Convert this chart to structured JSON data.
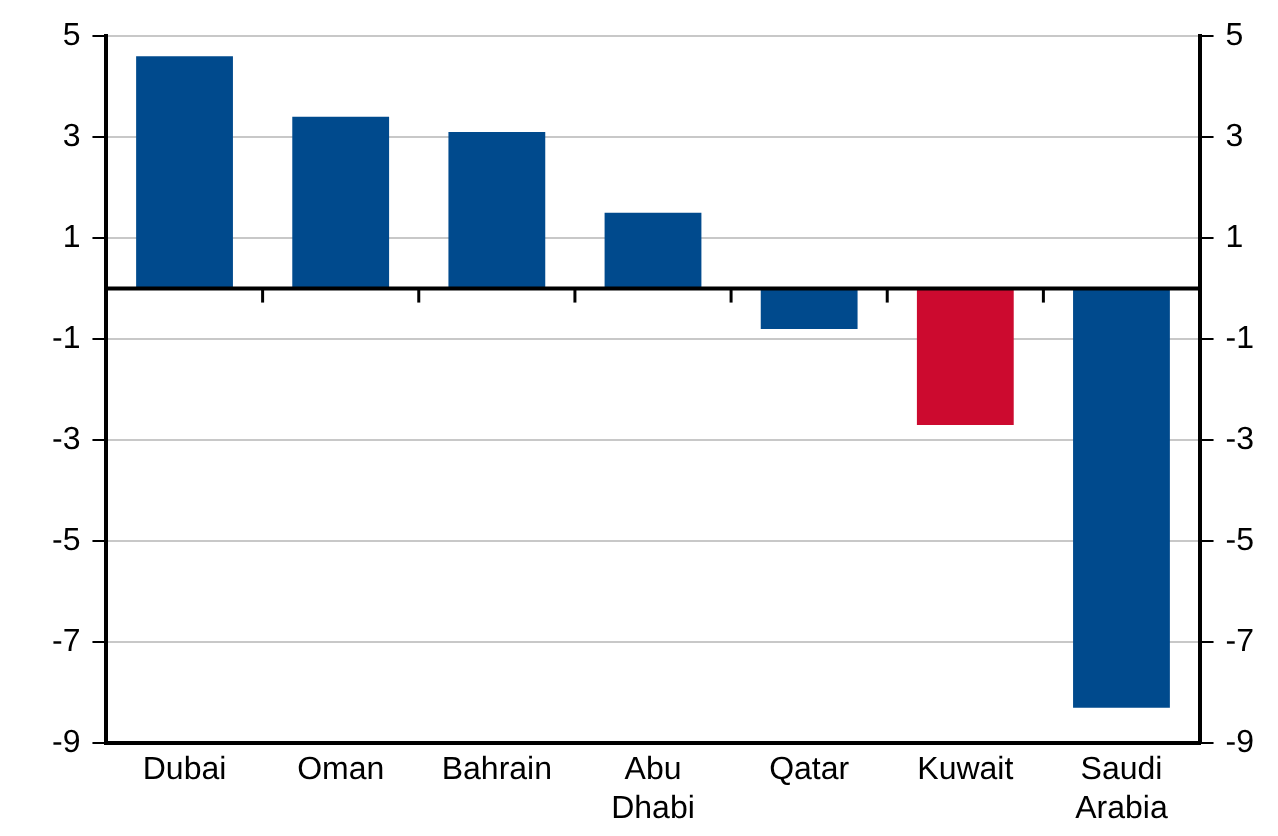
{
  "chart_data": {
    "type": "bar",
    "categories": [
      "Dubai",
      "Oman",
      "Bahrain",
      "Abu Dhabi",
      "Qatar",
      "Kuwait",
      "Saudi Arabia"
    ],
    "values": [
      4.6,
      3.4,
      3.1,
      1.5,
      -0.8,
      -2.7,
      -8.3
    ],
    "colors": [
      "#004a8d",
      "#004a8d",
      "#004a8d",
      "#004a8d",
      "#004a8d",
      "#cc0a2f",
      "#004a8d"
    ],
    "ylim": [
      -9,
      5
    ],
    "yticks": [
      -9,
      -7,
      -5,
      -3,
      -1,
      1,
      3,
      5
    ],
    "y2lim": [
      -9,
      5
    ],
    "y2ticks": [
      -9,
      -7,
      -5,
      -3,
      -1,
      1,
      3,
      5
    ],
    "grid": "y",
    "legend": false
  }
}
